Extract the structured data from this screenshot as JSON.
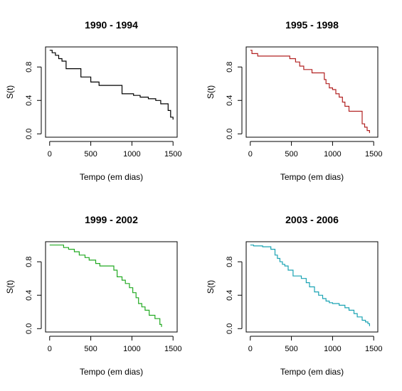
{
  "chart_data": [
    {
      "type": "line",
      "title": "1990 - 1994",
      "xlabel": "Tempo (em dias)",
      "ylabel": "S(t)",
      "xlim": [
        -50,
        1550
      ],
      "ylim": [
        -0.04,
        1.04
      ],
      "xticks": [
        0,
        500,
        1000,
        1500
      ],
      "yticks": [
        0.0,
        0.4,
        0.8
      ],
      "xtick_labels": [
        "0",
        "500",
        "1000",
        "1500"
      ],
      "ytick_labels": [
        "0.0",
        "0.4",
        "0.8"
      ],
      "grid": false,
      "color": "#000000",
      "steps": {
        "x": [
          0,
          30,
          70,
          110,
          150,
          200,
          380,
          500,
          600,
          880,
          1020,
          1100,
          1200,
          1290,
          1350,
          1440,
          1470,
          1500
        ],
        "y": [
          1.0,
          0.97,
          0.94,
          0.9,
          0.87,
          0.78,
          0.68,
          0.62,
          0.58,
          0.48,
          0.46,
          0.44,
          0.42,
          0.4,
          0.36,
          0.28,
          0.2,
          0.17
        ]
      }
    },
    {
      "type": "line",
      "title": "1995 - 1998",
      "xlabel": "Tempo (em dias)",
      "ylabel": "S(t)",
      "xlim": [
        -50,
        1550
      ],
      "ylim": [
        -0.04,
        1.04
      ],
      "xticks": [
        0,
        500,
        1000,
        1500
      ],
      "yticks": [
        0.0,
        0.4,
        0.8
      ],
      "xtick_labels": [
        "0",
        "500",
        "1000",
        "1500"
      ],
      "ytick_labels": [
        "0.0",
        "0.4",
        "0.8"
      ],
      "grid": false,
      "color": "#b22222",
      "steps": {
        "x": [
          0,
          20,
          90,
          480,
          550,
          600,
          650,
          750,
          900,
          920,
          960,
          1000,
          1040,
          1080,
          1120,
          1150,
          1200,
          1360,
          1390,
          1420,
          1450
        ],
        "y": [
          1.0,
          0.96,
          0.93,
          0.9,
          0.86,
          0.81,
          0.77,
          0.73,
          0.65,
          0.6,
          0.55,
          0.53,
          0.48,
          0.44,
          0.38,
          0.33,
          0.27,
          0.12,
          0.08,
          0.04,
          0.01
        ]
      }
    },
    {
      "type": "line",
      "title": "1999 - 2002",
      "xlabel": "Tempo (em dias)",
      "ylabel": "S(t)",
      "xlim": [
        -50,
        1550
      ],
      "ylim": [
        -0.04,
        1.04
      ],
      "xticks": [
        0,
        500,
        1000,
        1500
      ],
      "yticks": [
        0.0,
        0.4,
        0.8
      ],
      "xtick_labels": [
        "0",
        "500",
        "1000",
        "1500"
      ],
      "ytick_labels": [
        "0.0",
        "0.4",
        "0.8"
      ],
      "grid": false,
      "color": "#22aa22",
      "steps": {
        "x": [
          0,
          170,
          230,
          300,
          360,
          430,
          480,
          560,
          610,
          780,
          820,
          880,
          920,
          970,
          1010,
          1050,
          1080,
          1120,
          1160,
          1210,
          1280,
          1340,
          1360
        ],
        "y": [
          1.0,
          0.97,
          0.95,
          0.92,
          0.88,
          0.85,
          0.82,
          0.78,
          0.75,
          0.7,
          0.62,
          0.58,
          0.54,
          0.49,
          0.43,
          0.37,
          0.3,
          0.26,
          0.22,
          0.16,
          0.12,
          0.05,
          0.02
        ]
      }
    },
    {
      "type": "line",
      "title": "2003 - 2006",
      "xlabel": "Tempo (em dias)",
      "ylabel": "S(t)",
      "xlim": [
        -50,
        1550
      ],
      "ylim": [
        -0.04,
        1.04
      ],
      "xticks": [
        0,
        500,
        1000,
        1500
      ],
      "yticks": [
        0.0,
        0.4,
        0.8
      ],
      "xtick_labels": [
        "0",
        "500",
        "1000",
        "1500"
      ],
      "ytick_labels": [
        "0.0",
        "0.4",
        "0.8"
      ],
      "grid": false,
      "color": "#1aa3b3",
      "steps": {
        "x": [
          0,
          40,
          150,
          250,
          300,
          330,
          360,
          390,
          420,
          460,
          520,
          620,
          680,
          720,
          780,
          830,
          880,
          920,
          960,
          1000,
          1080,
          1150,
          1200,
          1260,
          1300,
          1360,
          1400,
          1430,
          1450
        ],
        "y": [
          1.0,
          0.99,
          0.98,
          0.95,
          0.88,
          0.84,
          0.8,
          0.77,
          0.75,
          0.7,
          0.63,
          0.6,
          0.55,
          0.5,
          0.44,
          0.4,
          0.36,
          0.33,
          0.31,
          0.3,
          0.28,
          0.25,
          0.22,
          0.18,
          0.14,
          0.1,
          0.08,
          0.06,
          0.03
        ]
      }
    }
  ]
}
